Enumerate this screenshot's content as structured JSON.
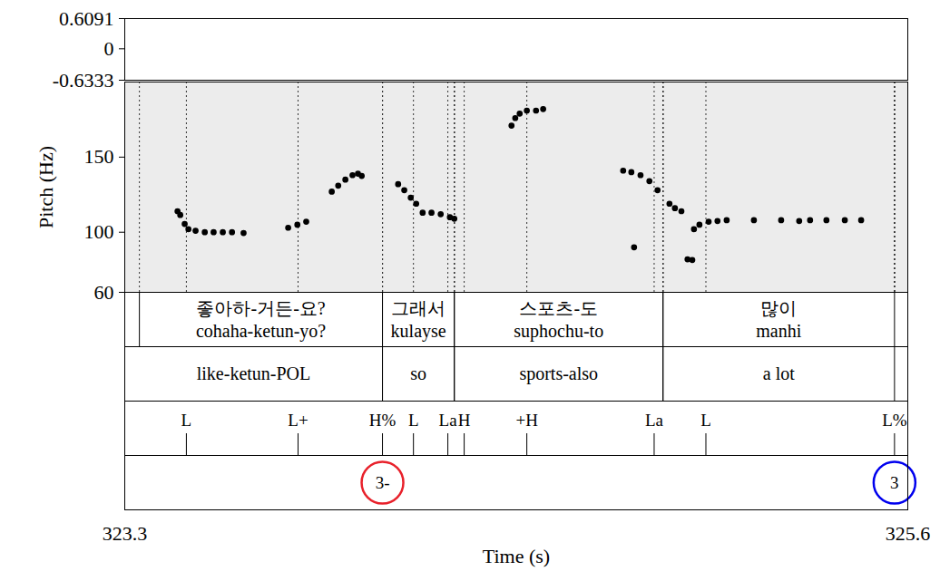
{
  "chart_data": {
    "type": "scatter",
    "x_label": "Time (s)",
    "xlim": [
      323.3,
      325.6
    ],
    "xticks": [
      323.3,
      325.6
    ],
    "y_label": "Pitch (Hz)",
    "ylim": [
      60,
      200
    ],
    "yticks": [
      60,
      100,
      150
    ],
    "color": "#000000",
    "marker": "circle",
    "x": [
      323.455,
      323.463,
      323.476,
      323.487,
      323.508,
      323.535,
      323.561,
      323.588,
      323.615,
      323.649,
      323.78,
      323.807,
      323.833,
      323.908,
      323.927,
      323.948,
      323.969,
      323.985,
      323.996,
      324.103,
      324.121,
      324.14,
      324.156,
      324.175,
      324.201,
      324.228,
      324.255,
      324.268,
      324.436,
      324.447,
      324.46,
      324.481,
      324.508,
      324.529,
      324.764,
      324.788,
      324.815,
      324.841,
      324.865,
      324.796,
      324.9,
      324.916,
      324.935,
      324.953,
      324.967,
      324.972,
      324.988,
      325.015,
      325.041,
      325.068,
      325.148,
      325.228,
      325.281,
      325.313,
      325.361,
      325.415,
      325.463
    ],
    "values": [
      114,
      111.5,
      105.5,
      102,
      101,
      100,
      100,
      100,
      100,
      99.5,
      103,
      105,
      107,
      127,
      131,
      135,
      138,
      139,
      137.5,
      132,
      128,
      123,
      119,
      113,
      113,
      112,
      110,
      109,
      171,
      176,
      179,
      181,
      181,
      182,
      141,
      140,
      138,
      134,
      128,
      90,
      119,
      116,
      114,
      82,
      81.5,
      102,
      105,
      107,
      107.5,
      108,
      108,
      108,
      107.5,
      108,
      108,
      108,
      108
    ],
    "waveform": {
      "ylim": [
        -0.6333,
        0.6091
      ],
      "yticks": [
        -0.6333,
        0,
        0.6091
      ]
    },
    "tiers": [
      {
        "type": "interval",
        "intervals": [
          {
            "start": 323.343,
            "end": 324.057,
            "text": [
              "좋아하-거든-요?",
              "cohaha-ketun-yo?"
            ]
          },
          {
            "start": 324.057,
            "end": 324.268,
            "text": [
              "그래서",
              "kulayse"
            ]
          },
          {
            "start": 324.268,
            "end": 324.881,
            "text": [
              "스포츠-도",
              "suphochu-to"
            ]
          },
          {
            "start": 324.881,
            "end": 325.561,
            "text": [
              "많이",
              "manhi"
            ]
          }
        ]
      },
      {
        "type": "interval",
        "intervals": [
          {
            "start": 323.3,
            "end": 324.057,
            "text": [
              "like-ketun-POL"
            ]
          },
          {
            "start": 324.057,
            "end": 324.268,
            "text": [
              "so"
            ]
          },
          {
            "start": 324.268,
            "end": 324.881,
            "text": [
              "sports-also"
            ]
          },
          {
            "start": 324.881,
            "end": 325.561,
            "text": [
              "a lot"
            ]
          }
        ]
      },
      {
        "type": "point",
        "points": [
          {
            "time": 323.481,
            "text": "L"
          },
          {
            "time": 323.809,
            "text": "L+"
          },
          {
            "time": 324.057,
            "text": "H%"
          },
          {
            "time": 324.148,
            "text": "L"
          },
          {
            "time": 324.249,
            "text": "La"
          },
          {
            "time": 324.297,
            "text": "H"
          },
          {
            "time": 324.481,
            "text": "+H"
          },
          {
            "time": 324.855,
            "text": "La"
          },
          {
            "time": 325.007,
            "text": "L"
          },
          {
            "time": 325.561,
            "text": "L%"
          }
        ]
      },
      {
        "type": "point",
        "points": [
          {
            "time": 324.057,
            "text": "3-",
            "color": "#e8212b"
          },
          {
            "time": 325.561,
            "text": "3",
            "color": "#0000ee"
          }
        ]
      }
    ]
  }
}
